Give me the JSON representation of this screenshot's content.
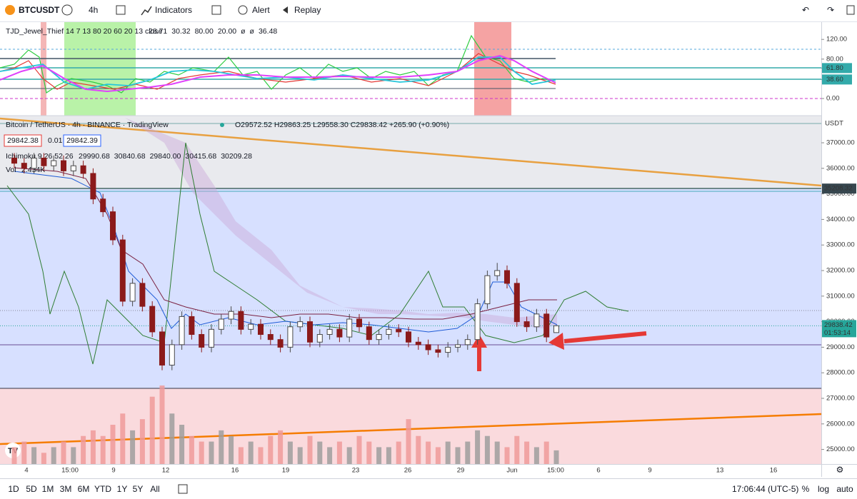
{
  "toolbar": {
    "symbol": "BTCUSDT",
    "interval": "4h",
    "indicators": "Indicators",
    "alert": "Alert",
    "replay": "Replay"
  },
  "oscillator": {
    "legend": "TJD_Jewel_Thief 14 7 13 80 20 60 20 13 close",
    "values": [
      "28.71",
      "30.32",
      "80.00",
      "20.00",
      "ø",
      "ø",
      "36.48"
    ],
    "ticks": [
      {
        "value": 120,
        "label": "120.00"
      },
      {
        "value": 80,
        "label": "80.00"
      },
      {
        "value": 61.8,
        "label": "61.80"
      },
      {
        "value": 38.6,
        "label": "38.60"
      },
      {
        "value": 0,
        "label": "0.00"
      }
    ]
  },
  "main": {
    "title": "Bitcoin / TetherUS · 4h · BINANCE · TradingView",
    "ohlc": "O29572.52 H29863.25 L29558.30 C29838.42 +265.90 (+0.90%)",
    "bid": "29842.38",
    "spread": "0.01",
    "ask": "29842.39",
    "ichimoku": "Ichimoku 9 26 52 26",
    "ichimoku_values": [
      "29990.68",
      "30840.68",
      "29840.00",
      "30415.68",
      "30209.28"
    ],
    "volume_label": "Vol",
    "volume_value": "2.434K",
    "currency": "USDT",
    "price_ticks": [
      {
        "value": 37000,
        "label": "37000.00"
      },
      {
        "value": 36000,
        "label": "36000.00"
      },
      {
        "value": 35000,
        "label": "35000.00"
      },
      {
        "value": 34000,
        "label": "34000.00"
      },
      {
        "value": 33000,
        "label": "33000.00"
      },
      {
        "value": 32000,
        "label": "32000.00"
      },
      {
        "value": 31000,
        "label": "31000.00"
      },
      {
        "value": 30000,
        "label": "30000.00"
      },
      {
        "value": 29000,
        "label": "29000.00"
      },
      {
        "value": 28000,
        "label": "28000.00"
      },
      {
        "value": 27000,
        "label": "27000.00"
      },
      {
        "value": 26000,
        "label": "26000.00"
      },
      {
        "value": 25000,
        "label": "25000.00"
      }
    ],
    "level_label": {
      "value": 35208.32,
      "label": "35208.32"
    },
    "last_price": {
      "value": 29838.42,
      "label": "29838.42"
    },
    "countdown": "01:53:14",
    "open": [
      36400,
      36200,
      36000,
      36400,
      36100,
      36300,
      35900,
      36100,
      35800,
      34800,
      34300,
      33200,
      30800,
      31500,
      30600,
      29600,
      28300,
      29100,
      30200,
      29500,
      29000,
      29700,
      30100,
      30400,
      29700,
      29900,
      29500,
      29300,
      29000,
      29800,
      30000,
      29200,
      29500,
      29700,
      29400,
      30100,
      29800,
      29300,
      29500,
      29700,
      29600,
      29200,
      29100,
      28900,
      28800,
      29000,
      29100,
      29300,
      30700,
      31800,
      32000,
      31500,
      30000,
      29800,
      30300,
      29572.52
    ],
    "high": [
      36600,
      36400,
      36600,
      36600,
      36500,
      36500,
      36300,
      36300,
      36000,
      35000,
      34500,
      33400,
      31700,
      31700,
      30800,
      29800,
      29300,
      30400,
      30400,
      29700,
      29900,
      30300,
      30600,
      30600,
      30100,
      30100,
      29700,
      29500,
      30000,
      30200,
      30200,
      29700,
      29900,
      29900,
      30300,
      30300,
      30000,
      29700,
      29900,
      29900,
      29800,
      29400,
      29300,
      29100,
      29200,
      29300,
      29500,
      30900,
      32000,
      32300,
      32200,
      31700,
      30200,
      30500,
      30500,
      29863.25
    ],
    "low": [
      36000,
      35800,
      35800,
      35900,
      35900,
      35700,
      35700,
      35600,
      34600,
      34100,
      33000,
      30600,
      30600,
      30400,
      29400,
      28100,
      28100,
      28900,
      29300,
      28800,
      28800,
      29500,
      29900,
      29500,
      29500,
      29300,
      29100,
      28800,
      28800,
      29600,
      29000,
      29000,
      29300,
      29200,
      29200,
      29600,
      29100,
      29100,
      29300,
      29400,
      29000,
      28900,
      28700,
      28600,
      28600,
      28800,
      28900,
      29100,
      30500,
      31600,
      31300,
      29800,
      29600,
      29600,
      29200,
      29558.3
    ],
    "close": [
      36200,
      36000,
      36400,
      36100,
      36300,
      35900,
      36100,
      35800,
      34800,
      34300,
      33200,
      30800,
      31500,
      30600,
      29600,
      28300,
      29100,
      30200,
      29500,
      29000,
      29700,
      30100,
      30400,
      29700,
      29900,
      29500,
      29300,
      29000,
      29800,
      30000,
      29200,
      29500,
      29700,
      29400,
      30100,
      29800,
      29300,
      29500,
      29700,
      29600,
      29200,
      29100,
      28900,
      28800,
      29000,
      29100,
      29300,
      30700,
      31800,
      32000,
      31500,
      30000,
      29800,
      30300,
      29400,
      29838.42
    ],
    "volume": [
      3,
      4,
      3,
      2,
      3,
      4,
      3,
      5,
      6,
      5,
      7,
      9,
      6,
      8,
      12,
      14,
      9,
      7,
      5,
      4,
      4,
      6,
      5,
      3,
      4,
      3,
      5,
      6,
      4,
      3,
      5,
      4,
      3,
      4,
      3,
      5,
      4,
      3,
      3,
      4,
      8,
      5,
      4,
      3,
      4,
      3,
      4,
      6,
      5,
      4,
      3,
      5,
      4,
      3,
      4,
      2.434
    ]
  },
  "time_axis": [
    "4",
    "15:00",
    "9",
    "12",
    "16",
    "19",
    "23",
    "26",
    "29",
    "Jun",
    "15:00",
    "6",
    "9",
    "13",
    "16"
  ],
  "bottom_bar": {
    "ranges": [
      "1D",
      "5D",
      "1M",
      "3M",
      "6M",
      "YTD",
      "1Y",
      "5Y",
      "All"
    ],
    "clock": "17:06:44 (UTC-5)",
    "percent": "%",
    "log": "log",
    "auto": "auto"
  }
}
